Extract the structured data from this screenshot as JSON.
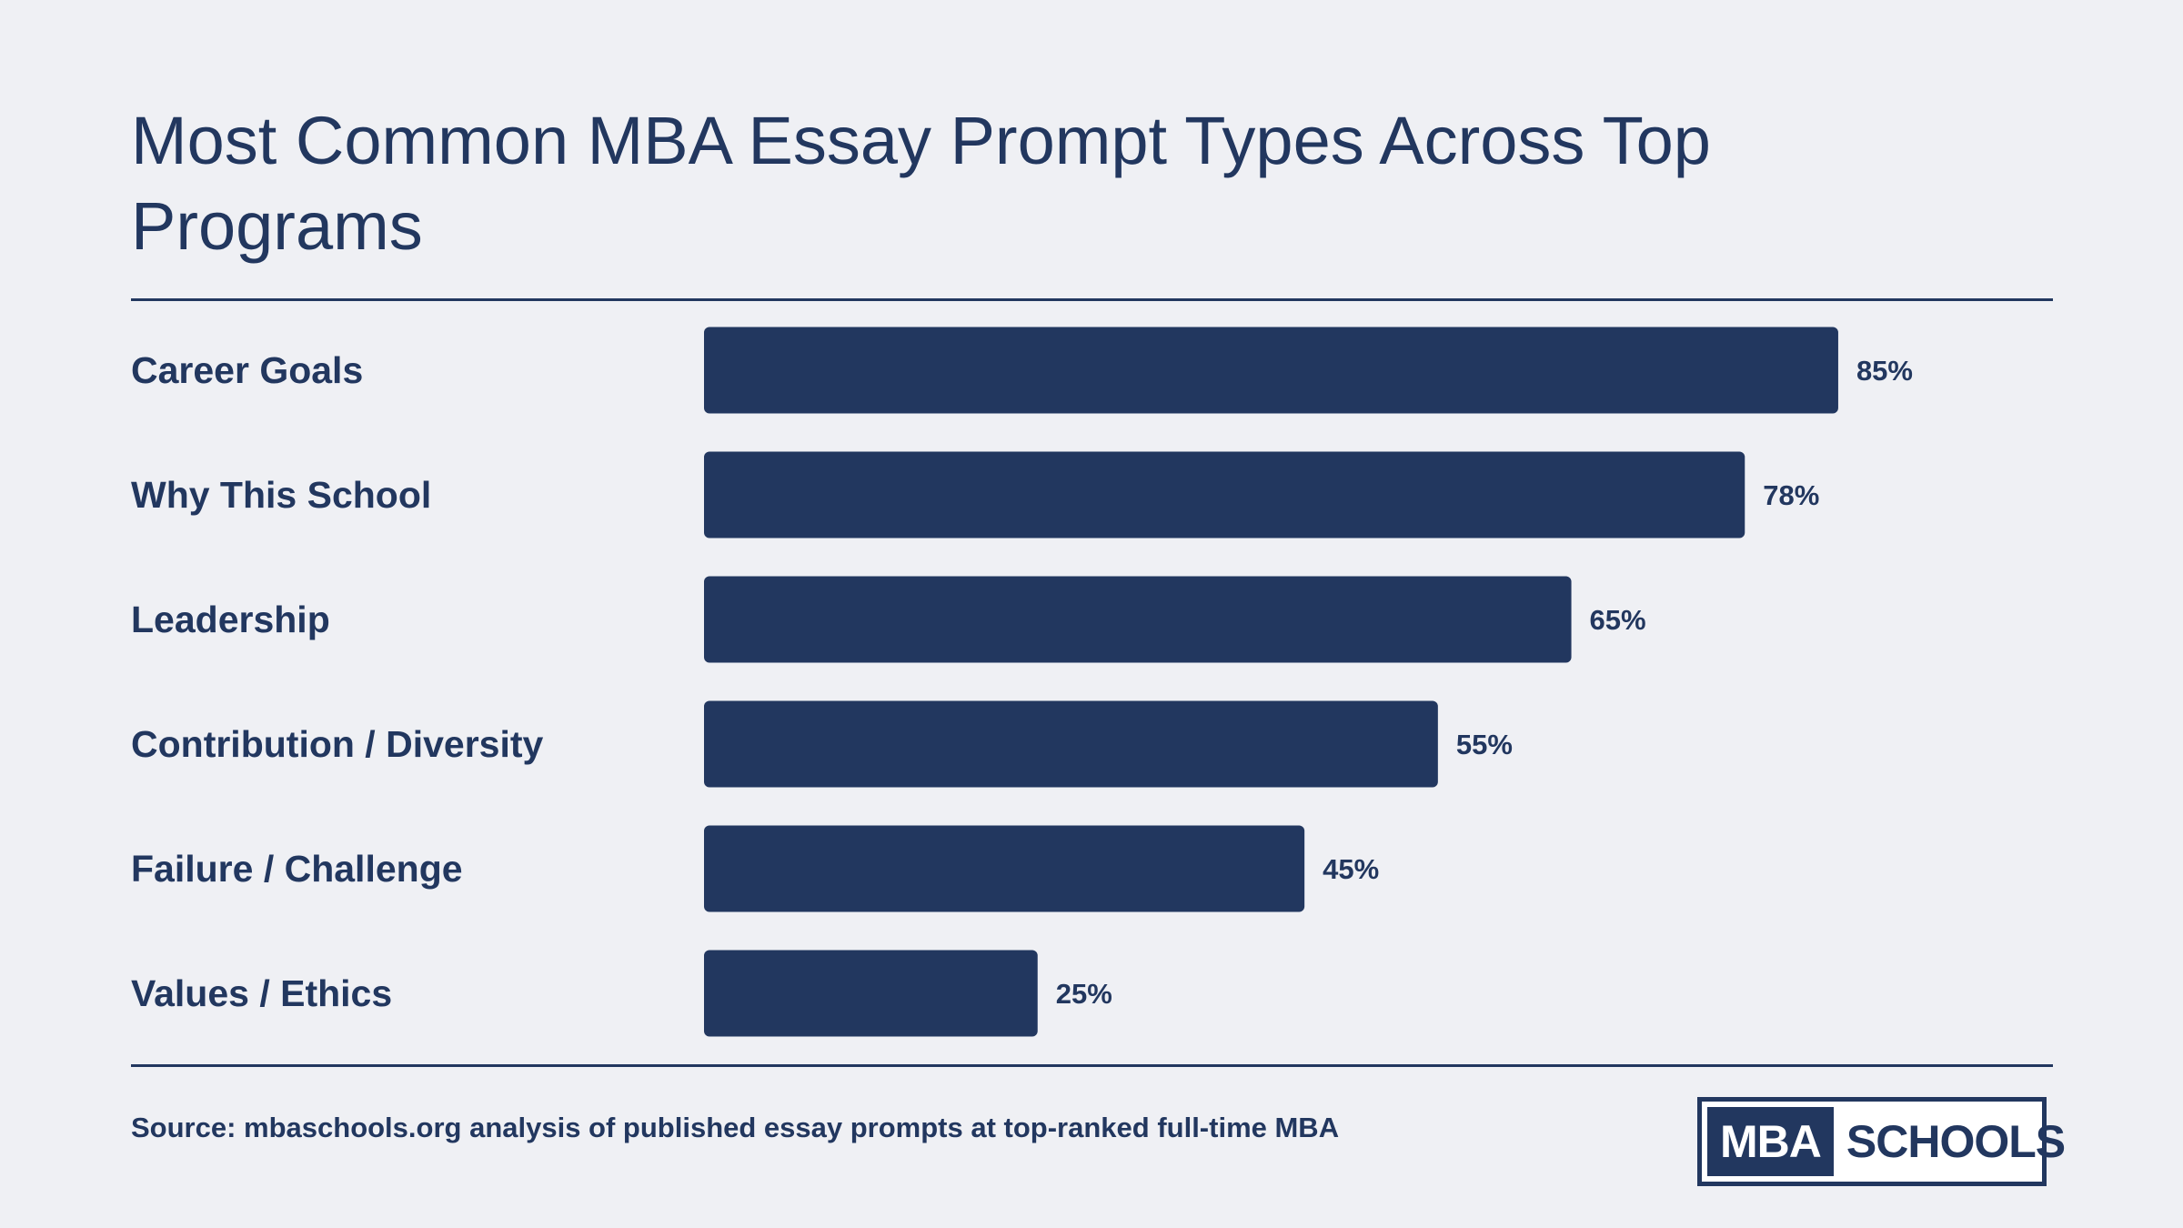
{
  "chart_data": {
    "type": "bar",
    "orientation": "horizontal",
    "title": "Most Common MBA Essay Prompt Types Across Top Programs",
    "categories": [
      "Career Goals",
      "Why This School",
      "Leadership",
      "Contribution / Diversity",
      "Failure / Challenge",
      "Values / Ethics"
    ],
    "values": [
      85,
      78,
      65,
      55,
      45,
      25
    ],
    "value_labels": [
      "85%",
      "78%",
      "65%",
      "55%",
      "45%",
      "25%"
    ],
    "xlim": [
      0,
      100
    ],
    "grid": false,
    "legend": "none"
  },
  "footer": {
    "source": "Source: mbaschools.org analysis of published essay prompts at top-ranked full-time MBA"
  },
  "logo": {
    "left": "MBA",
    "right": "SCHOOLS"
  },
  "colors": {
    "background": "#eff0f4",
    "bar": "#22375f",
    "text": "#22375f"
  }
}
